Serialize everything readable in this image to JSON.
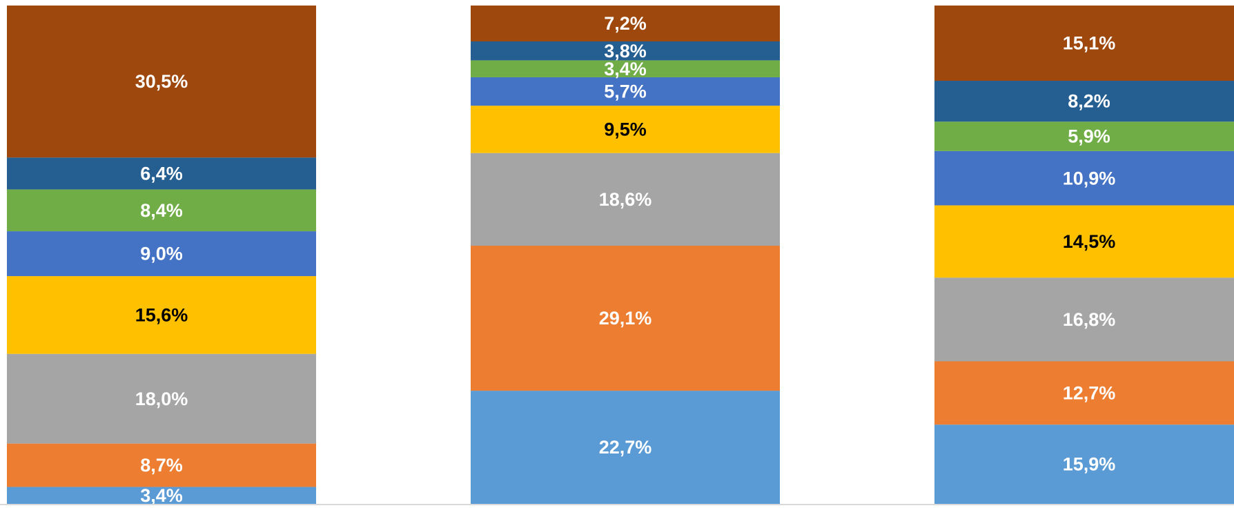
{
  "chart_data": {
    "type": "stacked_bar",
    "ylim": [
      0,
      100
    ],
    "series": [
      {
        "color": "#5b9bd5",
        "label_color": "#ffffff",
        "values": [
          3.4,
          22.7,
          15.9
        ],
        "value_labels": [
          "3,4%",
          "22,7%",
          "15,9%"
        ]
      },
      {
        "color": "#ed7d31",
        "label_color": "#ffffff",
        "values": [
          8.7,
          29.1,
          12.7
        ],
        "value_labels": [
          "8,7%",
          "29,1%",
          "12,7%"
        ]
      },
      {
        "color": "#a5a5a5",
        "label_color": "#ffffff",
        "values": [
          18.0,
          18.6,
          16.8
        ],
        "value_labels": [
          "18,0%",
          "18,6%",
          "16,8%"
        ]
      },
      {
        "color": "#ffc000",
        "label_color": "#000000",
        "values": [
          15.6,
          9.5,
          14.5
        ],
        "value_labels": [
          "15,6%",
          "9,5%",
          "14,5%"
        ]
      },
      {
        "color": "#4472c4",
        "label_color": "#ffffff",
        "values": [
          9.0,
          5.7,
          10.9
        ],
        "value_labels": [
          "9,0%",
          "5,7%",
          "10,9%"
        ]
      },
      {
        "color": "#70ad47",
        "label_color": "#ffffff",
        "values": [
          8.4,
          3.4,
          5.9
        ],
        "value_labels": [
          "8,4%",
          "3,4%",
          "5,9%"
        ]
      },
      {
        "color": "#255e91",
        "label_color": "#ffffff",
        "values": [
          6.4,
          3.8,
          8.2
        ],
        "value_labels": [
          "6,4%",
          "3,8%",
          "8,2%"
        ]
      },
      {
        "color": "#9e480e",
        "label_color": "#ffffff",
        "values": [
          30.5,
          7.2,
          15.1
        ],
        "value_labels": [
          "30,5%",
          "7,2%",
          "15,1%"
        ]
      }
    ]
  }
}
